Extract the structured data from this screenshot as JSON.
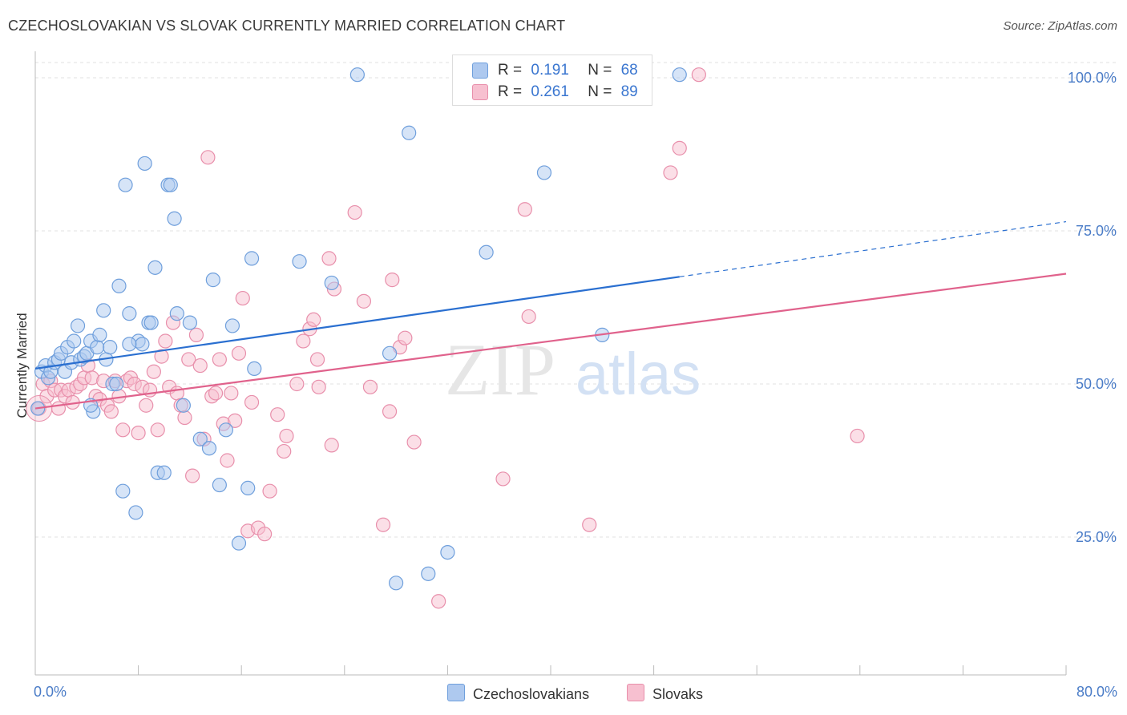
{
  "title": "CZECHOSLOVAKIAN VS SLOVAK CURRENTLY MARRIED CORRELATION CHART",
  "source": "Source: ZipAtlas.com",
  "watermark": {
    "zip": "ZIP",
    "atlas": "atlas"
  },
  "legend": {
    "rows": [
      {
        "r_label": "R =",
        "r_value": "0.191",
        "n_label": "N =",
        "n_value": "68",
        "color": "#aec9ef",
        "stroke": "#6f9fdc"
      },
      {
        "r_label": "R =",
        "r_value": "0.261",
        "n_label": "N =",
        "n_value": "89",
        "color": "#f7c0d0",
        "stroke": "#e88fab"
      }
    ]
  },
  "bottom_legend": {
    "series1": "Czechoslovakians",
    "series2": "Slovaks"
  },
  "colors": {
    "blue": "#6f9fdc",
    "blue_fill": "#aec9ef",
    "blue_line": "#2a6fd0",
    "pink": "#e88fab",
    "pink_fill": "#f7c0d0",
    "pink_line": "#e0628c",
    "axis_label": "#4a7cc7",
    "grid": "#dddddd"
  },
  "chart_data": {
    "type": "scatter",
    "title": "CZECHOSLOVAKIAN VS SLOVAK CURRENTLY MARRIED CORRELATION CHART",
    "xlabel": "",
    "ylabel": "Currently Married",
    "xlim": [
      0,
      80
    ],
    "ylim": [
      0,
      102
    ],
    "x_tick_labels": [
      "0.0%",
      "80.0%"
    ],
    "y_ticks": [
      25,
      50,
      75,
      100
    ],
    "y_tick_labels": [
      "25.0%",
      "50.0%",
      "75.0%",
      "100.0%"
    ],
    "grid": true,
    "legend_position": "top-center",
    "series": [
      {
        "name": "Czechoslovakians",
        "R": 0.191,
        "N": 68,
        "trend": {
          "x0": 0,
          "y0": 52.5,
          "x1": 50,
          "y1": 67.5,
          "dashed_to_x": 80,
          "dashed_to_y": 76.5
        },
        "points": [
          [
            0.2,
            46
          ],
          [
            0.5,
            52
          ],
          [
            0.8,
            53
          ],
          [
            1.0,
            51
          ],
          [
            1.2,
            52
          ],
          [
            1.5,
            53.5
          ],
          [
            1.8,
            54
          ],
          [
            2.0,
            55
          ],
          [
            2.3,
            52
          ],
          [
            2.5,
            56
          ],
          [
            2.8,
            53.5
          ],
          [
            3.0,
            57
          ],
          [
            3.3,
            59.5
          ],
          [
            3.5,
            54
          ],
          [
            3.8,
            54.5
          ],
          [
            4.0,
            55
          ],
          [
            4.3,
            57
          ],
          [
            4.5,
            45.5
          ],
          [
            4.8,
            56
          ],
          [
            5.0,
            58
          ],
          [
            5.3,
            62
          ],
          [
            5.5,
            54
          ],
          [
            5.8,
            56
          ],
          [
            6.0,
            50
          ],
          [
            6.5,
            66
          ],
          [
            6.8,
            32.5
          ],
          [
            7.0,
            82.5
          ],
          [
            7.3,
            61.5
          ],
          [
            7.8,
            29
          ],
          [
            8.0,
            57
          ],
          [
            8.3,
            56.5
          ],
          [
            8.5,
            86
          ],
          [
            8.8,
            60
          ],
          [
            9.0,
            60
          ],
          [
            9.3,
            69
          ],
          [
            9.5,
            35.5
          ],
          [
            10.0,
            35.5
          ],
          [
            10.3,
            82.5
          ],
          [
            10.5,
            82.5
          ],
          [
            10.8,
            77
          ],
          [
            11.0,
            61.5
          ],
          [
            11.5,
            46.5
          ],
          [
            12.0,
            60
          ],
          [
            12.8,
            41
          ],
          [
            13.5,
            39.5
          ],
          [
            13.8,
            67
          ],
          [
            14.3,
            33.5
          ],
          [
            14.8,
            42.5
          ],
          [
            15.3,
            59.5
          ],
          [
            15.8,
            24
          ],
          [
            16.5,
            33
          ],
          [
            16.8,
            70.5
          ],
          [
            17.0,
            52.5
          ],
          [
            20.5,
            70
          ],
          [
            23.0,
            66.5
          ],
          [
            25.0,
            100.5
          ],
          [
            27.5,
            55
          ],
          [
            28.0,
            17.5
          ],
          [
            29.0,
            91
          ],
          [
            30.5,
            19
          ],
          [
            32.0,
            22.5
          ],
          [
            35.0,
            71.5
          ],
          [
            39.5,
            84.5
          ],
          [
            44.0,
            58
          ],
          [
            50.0,
            100.5
          ],
          [
            6.3,
            50
          ],
          [
            7.3,
            56.5
          ],
          [
            4.3,
            46.5
          ]
        ]
      },
      {
        "name": "Slovaks",
        "R": 0.261,
        "N": 89,
        "trend": {
          "x0": 0,
          "y0": 46,
          "x1": 80,
          "y1": 68
        },
        "points": [
          [
            0.3,
            46
          ],
          [
            0.6,
            50
          ],
          [
            0.9,
            48
          ],
          [
            1.2,
            50.5
          ],
          [
            1.5,
            49
          ],
          [
            1.8,
            46
          ],
          [
            2.0,
            49
          ],
          [
            2.3,
            48
          ],
          [
            2.6,
            49
          ],
          [
            2.9,
            47
          ],
          [
            3.2,
            49.5
          ],
          [
            3.5,
            50
          ],
          [
            3.8,
            51
          ],
          [
            4.1,
            53
          ],
          [
            4.4,
            51
          ],
          [
            4.7,
            48
          ],
          [
            5.0,
            47.5
          ],
          [
            5.3,
            50.5
          ],
          [
            5.6,
            46.5
          ],
          [
            5.9,
            45.5
          ],
          [
            6.2,
            50.5
          ],
          [
            6.5,
            48
          ],
          [
            6.8,
            42.5
          ],
          [
            7.1,
            50.5
          ],
          [
            7.4,
            51
          ],
          [
            7.7,
            50
          ],
          [
            8.0,
            42
          ],
          [
            8.3,
            49.5
          ],
          [
            8.6,
            46.5
          ],
          [
            8.9,
            49
          ],
          [
            9.2,
            52
          ],
          [
            9.5,
            42.5
          ],
          [
            9.8,
            54.5
          ],
          [
            10.1,
            57
          ],
          [
            10.4,
            49.5
          ],
          [
            10.7,
            60
          ],
          [
            11.0,
            48.5
          ],
          [
            11.3,
            46.5
          ],
          [
            11.6,
            44.5
          ],
          [
            11.9,
            54
          ],
          [
            12.2,
            35
          ],
          [
            12.5,
            58
          ],
          [
            12.8,
            53
          ],
          [
            13.1,
            41
          ],
          [
            13.4,
            87
          ],
          [
            13.7,
            48
          ],
          [
            14.0,
            48.5
          ],
          [
            14.3,
            54
          ],
          [
            14.6,
            43.5
          ],
          [
            14.9,
            37.5
          ],
          [
            15.2,
            48.5
          ],
          [
            15.5,
            44
          ],
          [
            15.8,
            55
          ],
          [
            16.1,
            64
          ],
          [
            16.5,
            26
          ],
          [
            16.8,
            47
          ],
          [
            17.3,
            26.5
          ],
          [
            17.8,
            25.5
          ],
          [
            18.2,
            32.5
          ],
          [
            18.8,
            45
          ],
          [
            19.3,
            39
          ],
          [
            19.5,
            41.5
          ],
          [
            20.3,
            50
          ],
          [
            20.8,
            57
          ],
          [
            21.3,
            59
          ],
          [
            21.6,
            60.5
          ],
          [
            21.9,
            54
          ],
          [
            22.0,
            49.5
          ],
          [
            22.8,
            70.5
          ],
          [
            23.0,
            40
          ],
          [
            23.2,
            65.5
          ],
          [
            24.8,
            78
          ],
          [
            25.5,
            63.5
          ],
          [
            26.0,
            49.5
          ],
          [
            27.0,
            27
          ],
          [
            27.5,
            45.5
          ],
          [
            27.7,
            67
          ],
          [
            28.3,
            56
          ],
          [
            28.7,
            57.5
          ],
          [
            29.4,
            40.5
          ],
          [
            31.3,
            14.5
          ],
          [
            36.3,
            34.5
          ],
          [
            38.0,
            78.5
          ],
          [
            38.3,
            61
          ],
          [
            43.0,
            27
          ],
          [
            49.3,
            84.5
          ],
          [
            50.0,
            88.5
          ],
          [
            51.5,
            100.5
          ],
          [
            63.8,
            41.5
          ]
        ]
      }
    ]
  }
}
